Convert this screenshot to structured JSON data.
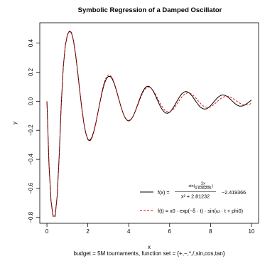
{
  "chart_data": {
    "type": "line",
    "title": "Symbolic Regression of a Damped Oscillator",
    "xlabel": "x",
    "ylabel": "y",
    "subtitle": "budget = 5M tournaments, function set = {+,−,*,/,sin,cos,tan}",
    "xlim": [
      -0.35,
      10.35
    ],
    "ylim": [
      -0.84,
      0.54
    ],
    "x_ticks": [
      0,
      2,
      4,
      6,
      8,
      10
    ],
    "x_tick_labels": [
      "0",
      "2",
      "4",
      "6",
      "8",
      "10"
    ],
    "y_ticks": [
      -0.8,
      -0.6,
      -0.4,
      -0.2,
      0.0,
      0.2,
      0.4
    ],
    "y_tick_labels": [
      "−0.8",
      "−0.6",
      "−0.4",
      "−0.2",
      "0.0",
      "0.2",
      "0.4"
    ],
    "grid": false,
    "legend_position": "bottom-right",
    "series": [
      {
        "color": "#000000",
        "line_style": "solid",
        "x": [
          0.0,
          0.1,
          0.2,
          0.3,
          0.4,
          0.5,
          0.6,
          0.7,
          0.8,
          0.9,
          1.0,
          1.1,
          1.2,
          1.3,
          1.4,
          1.5,
          1.6,
          1.7,
          1.8,
          1.9,
          2.0,
          2.1,
          2.2,
          2.3,
          2.4,
          2.5,
          2.6,
          2.7,
          2.8,
          2.9,
          3.0,
          3.1,
          3.2,
          3.3,
          3.4,
          3.5,
          3.6,
          3.7,
          3.8,
          3.9,
          4.0,
          4.1,
          4.2,
          4.3,
          4.4,
          4.5,
          4.6,
          4.7,
          4.8,
          4.9,
          5.0,
          5.1,
          5.2,
          5.3,
          5.4,
          5.5,
          5.6,
          5.7,
          5.8,
          5.9,
          6.0,
          6.1,
          6.2,
          6.3,
          6.4,
          6.5,
          6.6,
          6.7,
          6.8,
          6.9,
          7.0,
          7.1,
          7.2,
          7.3,
          7.4,
          7.5,
          7.6,
          7.7,
          7.8,
          7.9,
          8.0,
          8.1,
          8.2,
          8.3,
          8.4,
          8.5,
          8.6,
          8.7,
          8.8,
          8.9,
          9.0,
          9.1,
          9.2,
          9.3,
          9.4,
          9.5,
          9.6,
          9.7,
          9.8,
          9.9,
          10.0
        ],
        "y": [
          0.0,
          -0.434,
          -0.686,
          -0.79,
          -0.791,
          -0.651,
          -0.374,
          -0.021,
          0.238,
          0.384,
          0.458,
          0.482,
          0.471,
          0.414,
          0.322,
          0.205,
          0.078,
          -0.043,
          -0.146,
          -0.22,
          -0.262,
          -0.27,
          -0.248,
          -0.204,
          -0.143,
          -0.072,
          -0.002,
          0.064,
          0.117,
          0.153,
          0.171,
          0.17,
          0.152,
          0.118,
          0.073,
          0.022,
          -0.028,
          -0.073,
          -0.108,
          -0.129,
          -0.136,
          -0.128,
          -0.107,
          -0.076,
          -0.038,
          0.002,
          0.04,
          0.071,
          0.092,
          0.103,
          0.102,
          0.09,
          0.069,
          0.041,
          0.009,
          -0.022,
          -0.049,
          -0.069,
          -0.081,
          -0.083,
          -0.076,
          -0.061,
          -0.04,
          -0.015,
          0.01,
          0.033,
          0.052,
          0.063,
          0.067,
          0.063,
          0.052,
          0.036,
          0.016,
          -0.005,
          -0.024,
          -0.04,
          -0.05,
          -0.054,
          -0.052,
          -0.044,
          -0.031,
          -0.015,
          0.002,
          0.018,
          0.031,
          0.04,
          0.043,
          0.041,
          0.034,
          0.023,
          0.01,
          -0.004,
          -0.017,
          -0.027,
          -0.033,
          -0.034,
          -0.031,
          -0.024,
          -0.014,
          -0.003,
          0.008
        ]
      },
      {
        "color": "#e00000",
        "line_style": "dashed",
        "x": [
          0.0,
          0.1,
          0.2,
          0.3,
          0.4,
          0.5,
          0.6,
          0.7,
          0.8,
          0.9,
          1.0,
          1.1,
          1.2,
          1.3,
          1.4,
          1.5,
          1.6,
          1.7,
          1.8,
          1.9,
          2.0,
          2.1,
          2.2,
          2.3,
          2.4,
          2.5,
          2.6,
          2.7,
          2.8,
          2.9,
          3.0,
          3.1,
          3.2,
          3.3,
          3.4,
          3.5,
          3.6,
          3.7,
          3.8,
          3.9,
          4.0,
          4.1,
          4.2,
          4.3,
          4.4,
          4.5,
          4.6,
          4.7,
          4.8,
          4.9,
          5.0,
          5.1,
          5.2,
          5.3,
          5.4,
          5.5,
          5.6,
          5.7,
          5.8,
          5.9,
          6.0,
          6.1,
          6.2,
          6.3,
          6.4,
          6.5,
          6.6,
          6.7,
          6.8,
          6.9,
          7.0,
          7.1,
          7.2,
          7.3,
          7.4,
          7.5,
          7.6,
          7.7,
          7.8,
          7.9,
          8.0,
          8.1,
          8.2,
          8.3,
          8.4,
          8.5,
          8.6,
          8.7,
          8.8,
          8.9,
          9.0,
          9.1,
          9.2,
          9.3,
          9.4,
          9.5,
          9.6,
          9.7,
          9.8,
          9.9,
          10.0
        ],
        "y": [
          0.0,
          -0.438,
          -0.691,
          -0.795,
          -0.795,
          -0.655,
          -0.378,
          -0.025,
          0.236,
          0.384,
          0.46,
          0.485,
          0.474,
          0.418,
          0.326,
          0.209,
          0.082,
          -0.04,
          -0.144,
          -0.221,
          -0.265,
          -0.276,
          -0.255,
          -0.21,
          -0.147,
          -0.073,
          0.003,
          0.074,
          0.13,
          0.165,
          0.181,
          0.179,
          0.159,
          0.123,
          0.076,
          0.023,
          -0.028,
          -0.073,
          -0.107,
          -0.127,
          -0.133,
          -0.125,
          -0.106,
          -0.077,
          -0.042,
          -0.005,
          0.031,
          0.062,
          0.084,
          0.096,
          0.098,
          0.09,
          0.073,
          0.05,
          0.023,
          -0.005,
          -0.031,
          -0.052,
          -0.066,
          -0.073,
          -0.073,
          -0.065,
          -0.051,
          -0.032,
          -0.011,
          0.011,
          0.03,
          0.045,
          0.054,
          0.058,
          0.055,
          0.047,
          0.034,
          0.019,
          0.002,
          -0.014,
          -0.028,
          -0.037,
          -0.042,
          -0.043,
          -0.039,
          -0.03,
          -0.019,
          -0.006,
          0.007,
          0.018,
          0.027,
          0.032,
          0.034,
          0.032,
          0.027,
          0.019,
          0.009,
          -0.001,
          -0.011,
          -0.019,
          -0.024,
          -0.026,
          -0.025,
          -0.021,
          -0.014
        ]
      }
    ],
    "legend": [
      {
        "color": "#000000",
        "line_style": "solid",
        "lhs": "f(x) =",
        "frac_numer_prefix": "sin(",
        "inner_numer": "2x",
        "inner_denom": "0.636205",
        "frac_numer_suffix": ")",
        "frac_denom": "x² + 2.81232",
        "suffix": "−2.419366"
      },
      {
        "color": "#e00000",
        "line_style": "dashed",
        "text": "f(t) = x0 · exp(−δ · t) · sin(ω · t + phi0)"
      }
    ]
  }
}
